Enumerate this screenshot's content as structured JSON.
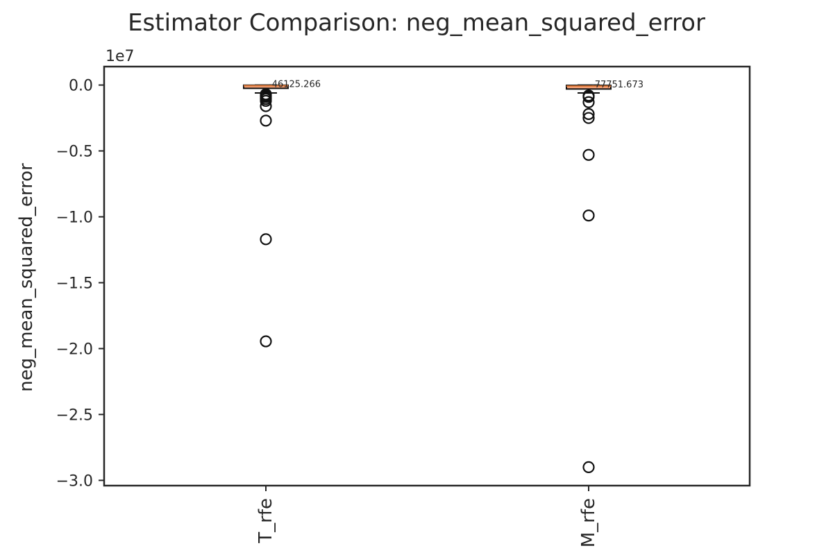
{
  "chart_data": {
    "type": "box",
    "title": "Estimator Comparison: neg_mean_squared_error",
    "xlabel": "",
    "ylabel": "neg_mean_squared_error",
    "y_offset_label": "1e7",
    "y_tick_values": [
      0.0,
      -0.5,
      -1.0,
      -1.5,
      -2.0,
      -2.5,
      -3.0
    ],
    "y_tick_labels": [
      "0.0",
      "−0.5",
      "−1.0",
      "−1.5",
      "−2.0",
      "−2.5",
      "−3.0"
    ],
    "ylim": [
      -3.04,
      0.14
    ],
    "y_scale": 10000000,
    "grid": false,
    "box_color": "#f5a37a",
    "median_color": "#e07a3a",
    "categories": [
      "T_rfe",
      "M_rfe"
    ],
    "boxes": [
      {
        "category": "T_rfe",
        "median": -46125.266,
        "median_label": "-46125.266",
        "q1": -250000,
        "q3": -10000,
        "whisker_low": -600000,
        "whisker_high": 0,
        "outliers": [
          -700000,
          -800000,
          -900000,
          -1050000,
          -1200000,
          -1600000,
          -2700000,
          -11700000,
          -19450000
        ]
      },
      {
        "category": "M_rfe",
        "median": -77751.673,
        "median_label": "-77751.673",
        "q1": -300000,
        "q3": -20000,
        "whisker_low": -600000,
        "whisker_high": 0,
        "outliers": [
          -800000,
          -900000,
          -1300000,
          -2200000,
          -2500000,
          -5300000,
          -9900000,
          -29000000
        ]
      }
    ]
  }
}
